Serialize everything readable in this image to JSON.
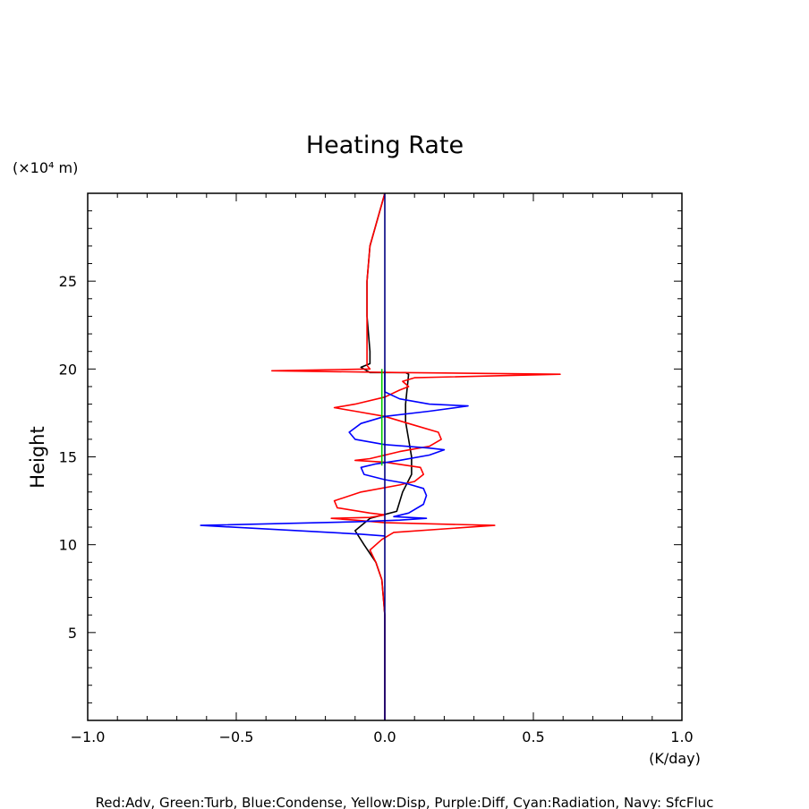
{
  "chart_data": {
    "type": "line",
    "title": "Heating Rate",
    "ylabel": "Height",
    "yunit": "(×10⁴ m)",
    "xunit": "(K/day)",
    "footer": "Red:Adv, Green:Turb, Blue:Condense, Yellow:Disp, Purple:Diff, Cyan:Radiation, Navy: SfcFluc",
    "xlim": [
      -1.0,
      1.0
    ],
    "ylim": [
      0,
      30
    ],
    "xticks": [
      -1.0,
      -0.5,
      0.0,
      0.5,
      1.0
    ],
    "xtick_labels": [
      "−1.0",
      "−0.5",
      "0.0",
      "0.5",
      "1.0"
    ],
    "yticks": [
      5,
      10,
      15,
      20,
      25
    ],
    "ytick_labels": [
      "5",
      "10",
      "15",
      "20",
      "25"
    ],
    "grid": false,
    "colors": {
      "red": "#ff0000",
      "green": "#00cc00",
      "blue": "#0000ff",
      "black": "#000000",
      "navy": "#000080"
    },
    "series": [
      {
        "color": "#000000",
        "points": [
          [
            0,
            0
          ],
          [
            0,
            3
          ],
          [
            0,
            6
          ],
          [
            -0.01,
            8
          ],
          [
            -0.03,
            9
          ],
          [
            -0.07,
            10
          ],
          [
            -0.1,
            10.8
          ],
          [
            -0.05,
            11.5
          ],
          [
            0.04,
            11.9
          ],
          [
            0.06,
            13
          ],
          [
            0.09,
            14
          ],
          [
            0.09,
            15
          ],
          [
            0.08,
            16
          ],
          [
            0.07,
            17
          ],
          [
            0.07,
            18
          ],
          [
            0.08,
            19.7
          ],
          [
            0.07,
            19.8
          ],
          [
            -0.05,
            19.8
          ],
          [
            -0.08,
            20.1
          ],
          [
            -0.05,
            20.3
          ],
          [
            -0.05,
            21
          ],
          [
            -0.06,
            23
          ],
          [
            -0.06,
            25
          ],
          [
            -0.05,
            27
          ],
          [
            0,
            30
          ]
        ]
      },
      {
        "color": "#ff0000",
        "points": [
          [
            0,
            0
          ],
          [
            0,
            3
          ],
          [
            0,
            6
          ],
          [
            -0.01,
            8
          ],
          [
            -0.03,
            9
          ],
          [
            -0.05,
            9.7
          ],
          [
            -0.01,
            10.3
          ],
          [
            0.03,
            10.7
          ],
          [
            0.37,
            11.1
          ],
          [
            0.0,
            11.25
          ],
          [
            -0.1,
            11.4
          ],
          [
            -0.18,
            11.5
          ],
          [
            -0.05,
            11.55
          ],
          [
            0.0,
            11.7
          ],
          [
            -0.05,
            11.8
          ],
          [
            -0.16,
            12.1
          ],
          [
            -0.17,
            12.5
          ],
          [
            -0.08,
            13
          ],
          [
            0.05,
            13.4
          ],
          [
            0.1,
            13.6
          ],
          [
            0.13,
            14
          ],
          [
            0.12,
            14.4
          ],
          [
            0.0,
            14.7
          ],
          [
            -0.1,
            14.8
          ],
          [
            -0.05,
            14.9
          ],
          [
            0.05,
            15.3
          ],
          [
            0.15,
            15.6
          ],
          [
            0.19,
            16.0
          ],
          [
            0.18,
            16.4
          ],
          [
            0.1,
            16.8
          ],
          [
            0.0,
            17.3
          ],
          [
            -0.1,
            17.6
          ],
          [
            -0.17,
            17.8
          ],
          [
            -0.1,
            18.0
          ],
          [
            0.0,
            18.4
          ],
          [
            0.05,
            18.8
          ],
          [
            0.08,
            19.0
          ],
          [
            0.06,
            19.3
          ],
          [
            0.1,
            19.5
          ],
          [
            0.59,
            19.7
          ],
          [
            0.05,
            19.8
          ],
          [
            -0.38,
            19.9
          ],
          [
            -0.05,
            20.0
          ],
          [
            -0.06,
            20.2
          ],
          [
            -0.06,
            21
          ],
          [
            -0.06,
            23
          ],
          [
            -0.06,
            25
          ],
          [
            -0.05,
            27
          ],
          [
            0,
            30
          ]
        ]
      },
      {
        "color": "#0000ff",
        "points": [
          [
            0,
            10.5
          ],
          [
            -0.08,
            10.6
          ],
          [
            -0.62,
            11.1
          ],
          [
            -0.1,
            11.3
          ],
          [
            0.05,
            11.4
          ],
          [
            0.14,
            11.5
          ],
          [
            0.03,
            11.6
          ],
          [
            0.08,
            11.8
          ],
          [
            0.13,
            12.3
          ],
          [
            0.14,
            12.8
          ],
          [
            0.13,
            13.2
          ],
          [
            0.07,
            13.5
          ],
          [
            0.0,
            13.7
          ],
          [
            -0.07,
            14
          ],
          [
            -0.08,
            14.4
          ],
          [
            -0.03,
            14.6
          ],
          [
            0.05,
            14.8
          ],
          [
            0.15,
            15.1
          ],
          [
            0.2,
            15.4
          ],
          [
            0.15,
            15.5
          ],
          [
            0.0,
            15.7
          ],
          [
            -0.1,
            16.0
          ],
          [
            -0.12,
            16.4
          ],
          [
            -0.08,
            16.9
          ],
          [
            0.0,
            17.3
          ],
          [
            0.15,
            17.6
          ],
          [
            0.28,
            17.9
          ],
          [
            0.15,
            18.0
          ],
          [
            0.05,
            18.3
          ],
          [
            0.0,
            18.7
          ],
          [
            0,
            19.2
          ],
          [
            0,
            19.9
          ]
        ]
      },
      {
        "color": "#00cc00",
        "points": [
          [
            -0.01,
            14.5
          ],
          [
            -0.01,
            17
          ],
          [
            -0.01,
            20.0
          ]
        ]
      },
      {
        "color": "#000080",
        "points": [
          [
            0,
            0
          ],
          [
            0,
            30
          ]
        ]
      }
    ]
  }
}
